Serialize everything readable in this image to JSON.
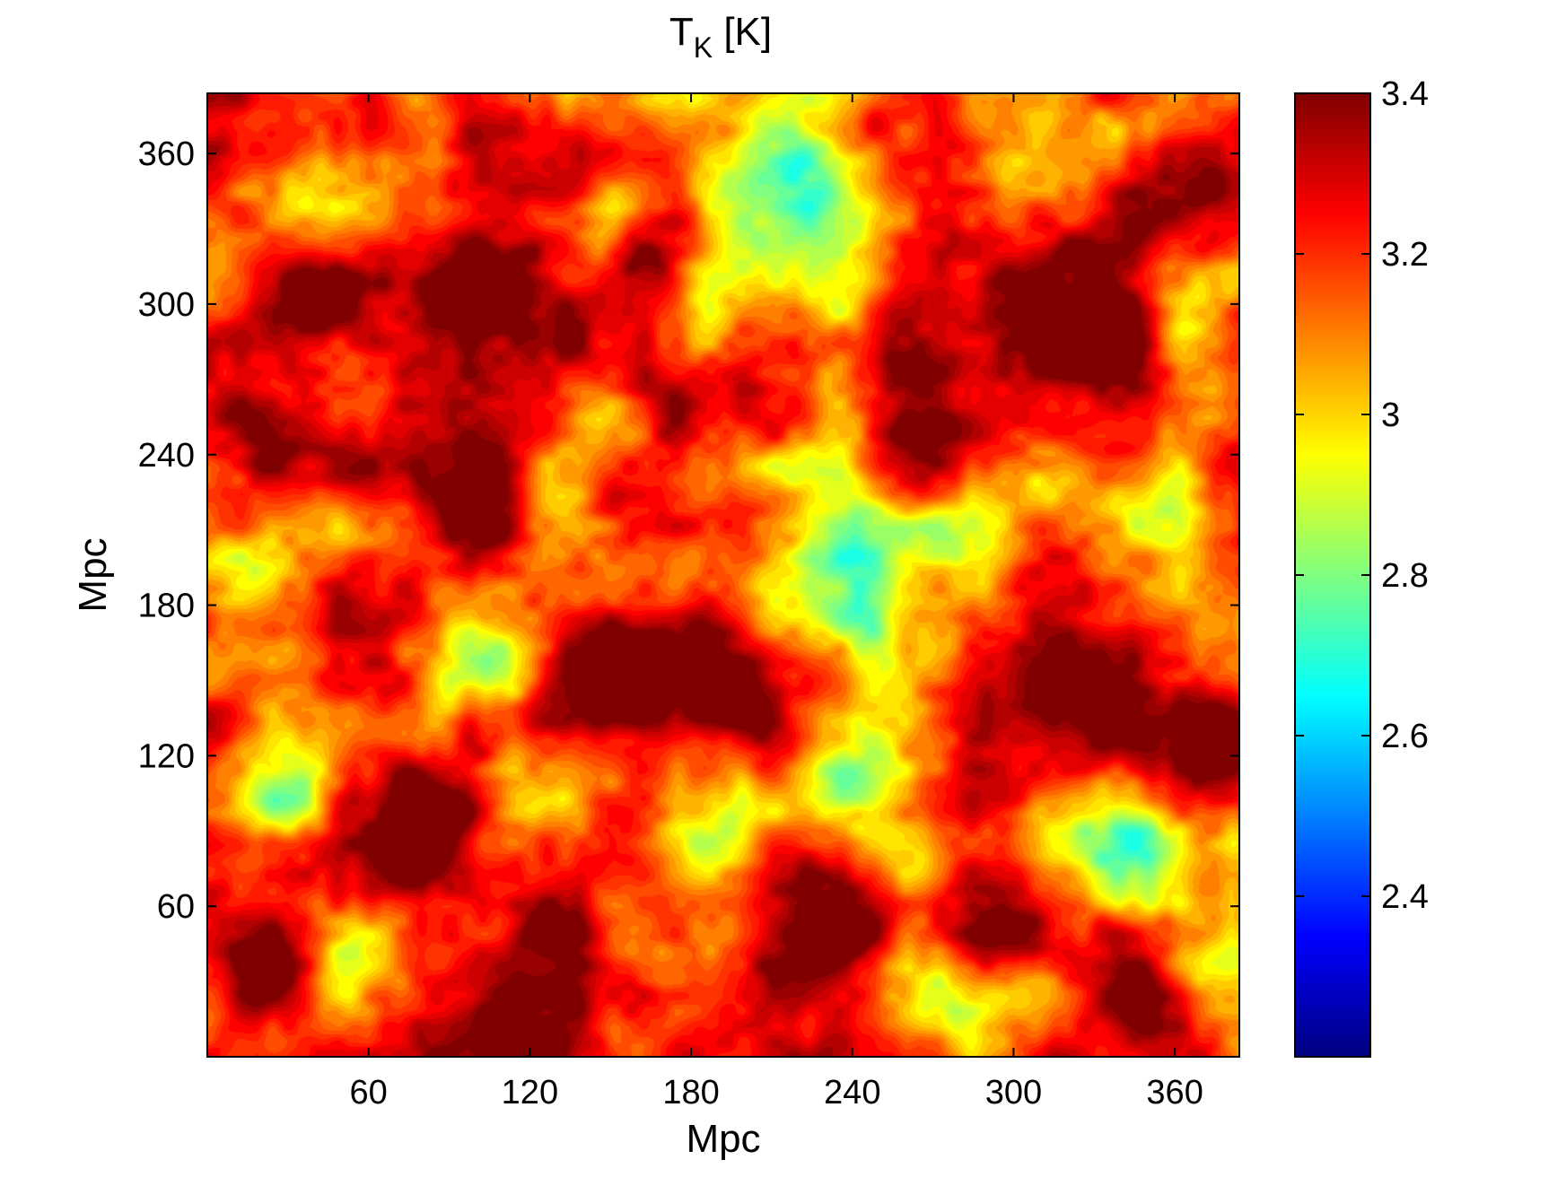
{
  "chart_data": {
    "type": "heatmap",
    "title": {
      "main": "T",
      "subscript": "K",
      "unit": " [K]"
    },
    "xlabel": "Mpc",
    "ylabel": "Mpc",
    "xlim": [
      0,
      384
    ],
    "ylim": [
      0,
      384
    ],
    "xticks": [
      {
        "value": 60,
        "label": "60"
      },
      {
        "value": 120,
        "label": "120"
      },
      {
        "value": 180,
        "label": "180"
      },
      {
        "value": 240,
        "label": "240"
      },
      {
        "value": 300,
        "label": "300"
      },
      {
        "value": 360,
        "label": "360"
      }
    ],
    "yticks": [
      {
        "value": 60,
        "label": "60"
      },
      {
        "value": 120,
        "label": "120"
      },
      {
        "value": 180,
        "label": "180"
      },
      {
        "value": 240,
        "label": "240"
      },
      {
        "value": 300,
        "label": "300"
      },
      {
        "value": 360,
        "label": "360"
      }
    ],
    "colorbar": {
      "colormap": "jet",
      "range": [
        2.2,
        3.4
      ],
      "ticks": [
        {
          "value": 2.4,
          "label": "2.4"
        },
        {
          "value": 2.6,
          "label": "2.6"
        },
        {
          "value": 2.8,
          "label": "2.8"
        },
        {
          "value": 3.0,
          "label": "3"
        },
        {
          "value": 3.2,
          "label": "3.2"
        },
        {
          "value": 3.4,
          "label": "3.4"
        }
      ]
    },
    "field": {
      "baseline": 3.2,
      "cold_spots": [
        {
          "x": 30,
          "y": 105,
          "depth": 0.35,
          "r": 14
        },
        {
          "x": 55,
          "y": 40,
          "depth": 0.28,
          "r": 16
        },
        {
          "x": 100,
          "y": 160,
          "depth": 0.38,
          "r": 18
        },
        {
          "x": 210,
          "y": 330,
          "depth": 0.42,
          "r": 26
        },
        {
          "x": 220,
          "y": 360,
          "depth": 0.32,
          "r": 15
        },
        {
          "x": 245,
          "y": 115,
          "depth": 0.4,
          "r": 18
        },
        {
          "x": 240,
          "y": 210,
          "depth": 0.3,
          "r": 22
        },
        {
          "x": 250,
          "y": 170,
          "depth": 0.3,
          "r": 18
        },
        {
          "x": 340,
          "y": 85,
          "depth": 0.4,
          "r": 20
        },
        {
          "x": 345,
          "y": 215,
          "depth": 0.3,
          "r": 18
        },
        {
          "x": 310,
          "y": 355,
          "depth": 0.32,
          "r": 18
        },
        {
          "x": 40,
          "y": 345,
          "depth": 0.25,
          "r": 14
        },
        {
          "x": 150,
          "y": 250,
          "depth": 0.22,
          "r": 14
        },
        {
          "x": 195,
          "y": 95,
          "depth": 0.26,
          "r": 16
        },
        {
          "x": 290,
          "y": 215,
          "depth": 0.24,
          "r": 16
        },
        {
          "x": 15,
          "y": 190,
          "depth": 0.24,
          "r": 14
        },
        {
          "x": 140,
          "y": 320,
          "depth": 0.22,
          "r": 14
        },
        {
          "x": 280,
          "y": 20,
          "depth": 0.26,
          "r": 16
        },
        {
          "x": 380,
          "y": 40,
          "depth": 0.22,
          "r": 14
        },
        {
          "x": 120,
          "y": 110,
          "depth": 0.2,
          "r": 14
        },
        {
          "x": 160,
          "y": 380,
          "depth": 0.24,
          "r": 14
        },
        {
          "x": 365,
          "y": 300,
          "depth": 0.24,
          "r": 14
        },
        {
          "x": 185,
          "y": 200,
          "depth": 0.22,
          "r": 12
        }
      ],
      "hot_regions": [
        {
          "x": 90,
          "y": 230,
          "r": 18
        },
        {
          "x": 330,
          "y": 290,
          "r": 24
        },
        {
          "x": 275,
          "y": 250,
          "r": 20
        },
        {
          "x": 150,
          "y": 150,
          "r": 18
        },
        {
          "x": 185,
          "y": 150,
          "r": 18
        },
        {
          "x": 120,
          "y": 25,
          "r": 22
        },
        {
          "x": 80,
          "y": 95,
          "r": 18
        },
        {
          "x": 230,
          "y": 55,
          "r": 18
        },
        {
          "x": 320,
          "y": 140,
          "r": 18
        },
        {
          "x": 365,
          "y": 350,
          "r": 16
        },
        {
          "x": 100,
          "y": 300,
          "r": 20
        },
        {
          "x": 20,
          "y": 250,
          "r": 14
        },
        {
          "x": 175,
          "y": 260,
          "r": 14
        },
        {
          "x": 170,
          "y": 320,
          "r": 14
        },
        {
          "x": 350,
          "y": 20,
          "r": 14
        },
        {
          "x": 20,
          "y": 35,
          "r": 12
        },
        {
          "x": 300,
          "y": 50,
          "r": 14
        },
        {
          "x": 45,
          "y": 300,
          "r": 14
        },
        {
          "x": 375,
          "y": 125,
          "r": 14
        }
      ]
    }
  }
}
